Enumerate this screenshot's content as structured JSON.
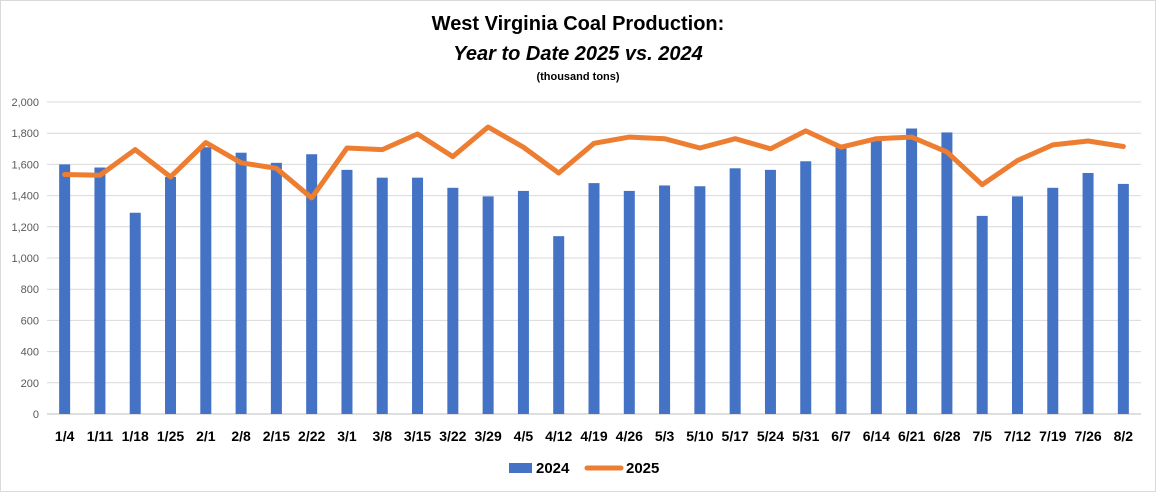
{
  "chart_data": {
    "type": "bar",
    "title": "West Virginia Coal Production:",
    "subtitle": "Year to Date 2025 vs. 2024",
    "unit_note": "(thousand tons)",
    "categories": [
      "1/4",
      "1/11",
      "1/18",
      "1/25",
      "2/1",
      "2/8",
      "2/15",
      "2/22",
      "3/1",
      "3/8",
      "3/15",
      "3/22",
      "3/29",
      "4/5",
      "4/12",
      "4/19",
      "4/26",
      "5/3",
      "5/10",
      "5/17",
      "5/24",
      "5/31",
      "6/7",
      "6/14",
      "6/21",
      "6/28",
      "7/5",
      "7/12",
      "7/19",
      "7/26",
      "8/2"
    ],
    "series": [
      {
        "name": "2024",
        "type": "bar",
        "color": "#4472C4",
        "values": [
          1600,
          1580,
          1290,
          1520,
          1710,
          1675,
          1610,
          1665,
          1565,
          1515,
          1515,
          1450,
          1395,
          1430,
          1140,
          1480,
          1430,
          1465,
          1460,
          1575,
          1565,
          1620,
          1720,
          1760,
          1830,
          1805,
          1270,
          1395,
          1450,
          1545,
          1475
        ]
      },
      {
        "name": "2025",
        "type": "line",
        "color": "#ED7D31",
        "values": [
          1535,
          1530,
          1695,
          1520,
          1740,
          1610,
          1575,
          1385,
          1705,
          1695,
          1795,
          1650,
          1840,
          1710,
          1545,
          1735,
          1775,
          1765,
          1705,
          1765,
          1700,
          1815,
          1710,
          1765,
          1775,
          1680,
          1470,
          1625,
          1725,
          1750,
          1715
        ]
      }
    ],
    "ylim": [
      0,
      2000
    ],
    "yticks": [
      "0",
      "200",
      "400",
      "600",
      "800",
      "1,000",
      "1,200",
      "1,400",
      "1,600",
      "1,800",
      "2,000"
    ],
    "grid": true,
    "legend": "bottom-center"
  }
}
